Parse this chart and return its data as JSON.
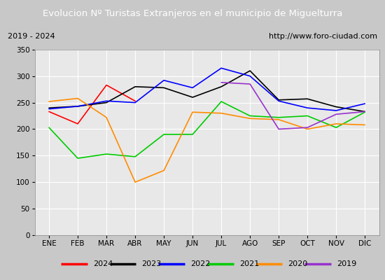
{
  "title": "Evolucion Nº Turistas Extranjeros en el municipio de Miguelturra",
  "subtitle_left": "2019 - 2024",
  "subtitle_right": "http://www.foro-ciudad.com",
  "title_bg_color": "#4472c4",
  "title_font_color": "white",
  "months": [
    "ENE",
    "FEB",
    "MAR",
    "ABR",
    "MAY",
    "JUN",
    "JUL",
    "AGO",
    "SEP",
    "OCT",
    "NOV",
    "DIC"
  ],
  "ylim": [
    0,
    350
  ],
  "yticks": [
    0,
    50,
    100,
    150,
    200,
    250,
    300,
    350
  ],
  "series": {
    "2024": {
      "color": "#ff0000",
      "values": [
        233,
        210,
        283,
        253,
        null,
        null,
        null,
        null,
        null,
        null,
        null,
        null
      ]
    },
    "2023": {
      "color": "#000000",
      "values": [
        240,
        243,
        250,
        280,
        278,
        260,
        280,
        310,
        255,
        257,
        242,
        233
      ]
    },
    "2022": {
      "color": "#0000ff",
      "values": [
        238,
        243,
        253,
        250,
        292,
        278,
        315,
        300,
        253,
        240,
        235,
        248
      ]
    },
    "2021": {
      "color": "#00cc00",
      "values": [
        203,
        145,
        153,
        148,
        190,
        190,
        252,
        225,
        222,
        225,
        203,
        232
      ]
    },
    "2020": {
      "color": "#ff8c00",
      "values": [
        252,
        258,
        222,
        100,
        122,
        232,
        230,
        220,
        218,
        200,
        210,
        208
      ]
    },
    "2019": {
      "color": "#9932cc",
      "values": [
        null,
        null,
        null,
        null,
        null,
        null,
        288,
        285,
        200,
        203,
        228,
        233
      ]
    }
  },
  "legend_order": [
    "2024",
    "2023",
    "2022",
    "2021",
    "2020",
    "2019"
  ],
  "plot_bg_color": "#e8e8e8",
  "outer_bg_color": "#c8c8c8",
  "grid_color": "#ffffff"
}
